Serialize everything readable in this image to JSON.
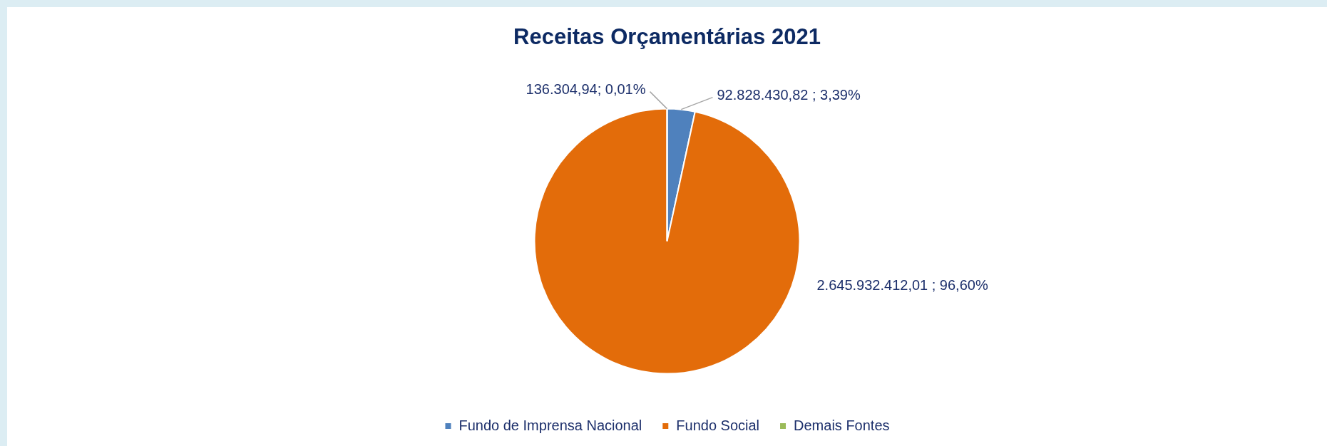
{
  "chart_data": {
    "type": "pie",
    "title": "Receitas Orçamentárias 2021",
    "categories": [
      "Fundo de Imprensa Nacional",
      "Fundo Social",
      "Demais Fontes"
    ],
    "values": [
      92828430.82,
      2645932412.01,
      136304.94
    ],
    "value_labels": [
      "92.828.430,82 ; 3,39%",
      "2.645.932.412,01 ; 96,60%",
      "136.304,94; 0,01%"
    ],
    "colors": [
      "#4f81bd",
      "#e36c0a",
      "#9bbb59"
    ],
    "legend": "bottom"
  }
}
